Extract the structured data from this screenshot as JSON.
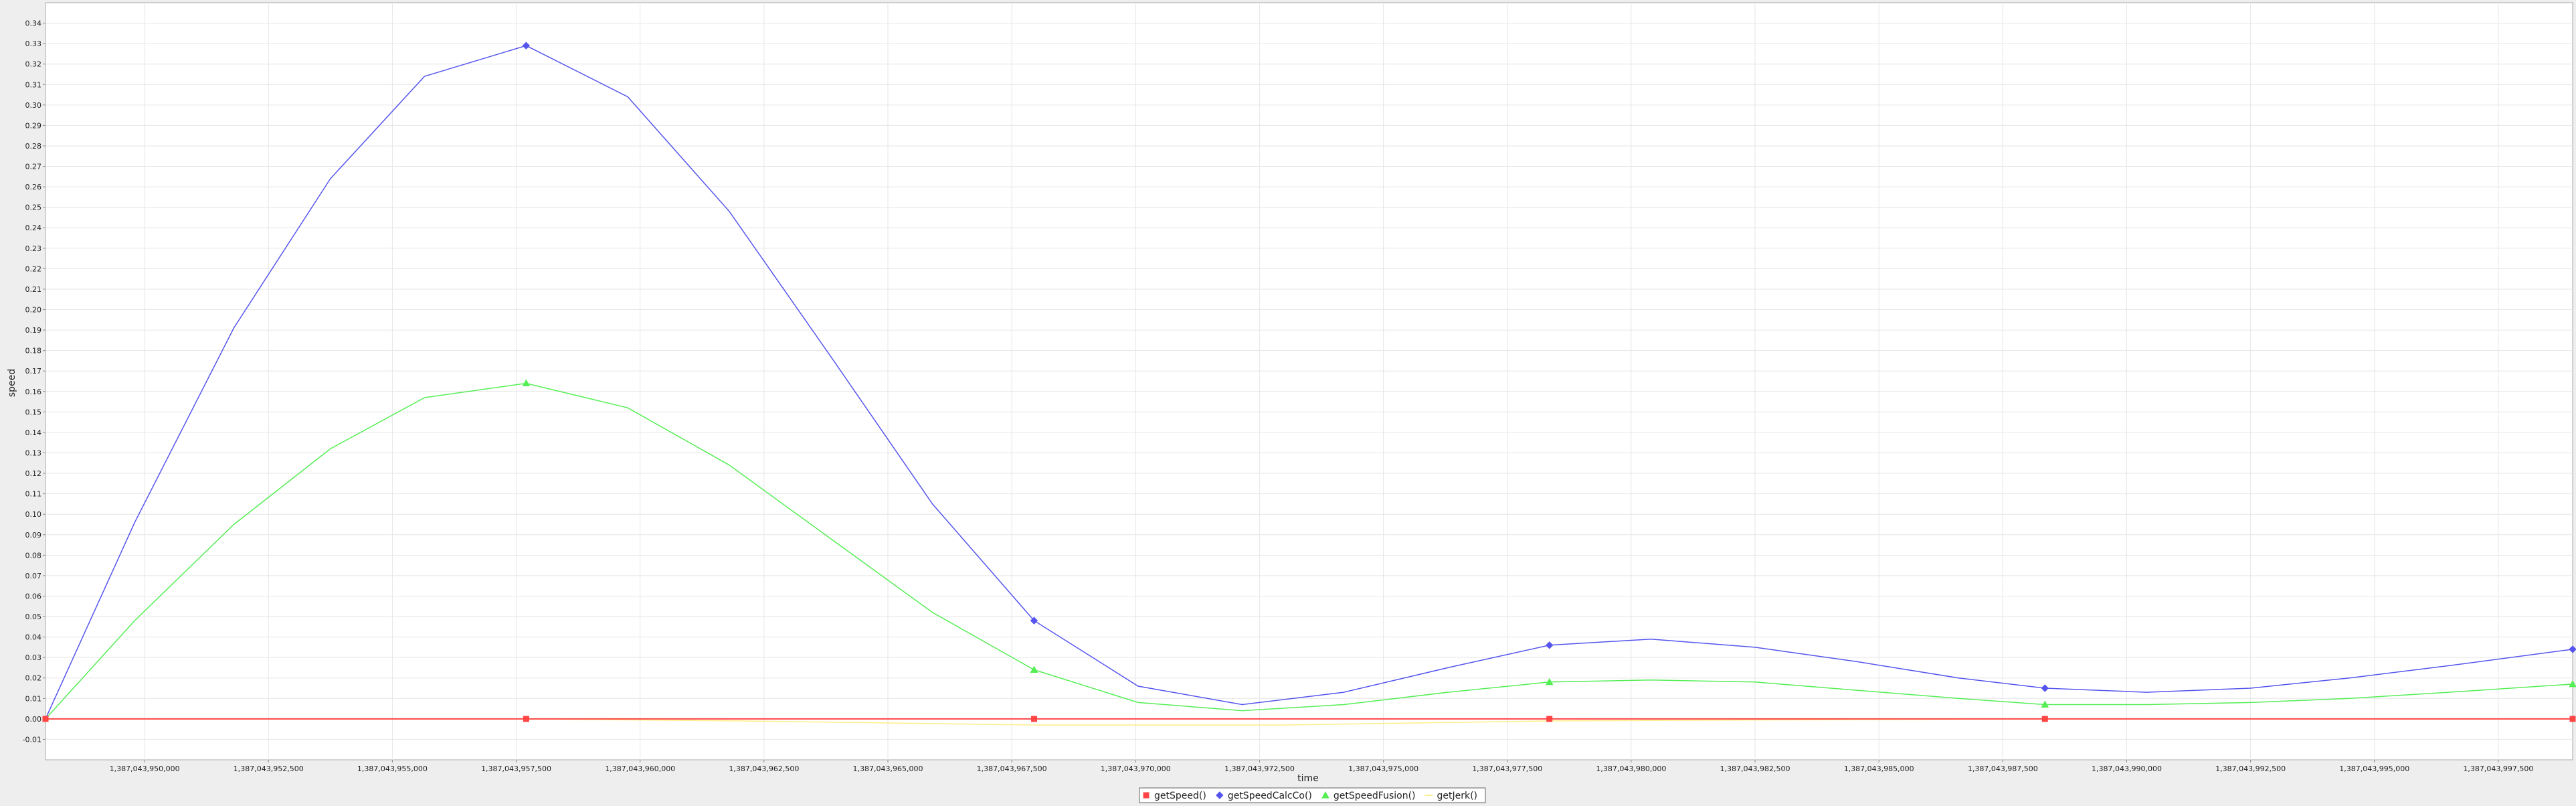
{
  "chart_data": {
    "type": "line",
    "title": "",
    "xlabel": "time",
    "ylabel": "speed",
    "xlim": [
      1387043948000,
      1387043999000
    ],
    "ylim": [
      -0.02,
      0.35
    ],
    "grid": true,
    "legend_position": "bottom-center",
    "x_ticks": [
      1387043950000,
      1387043952500,
      1387043955000,
      1387043957500,
      1387043960000,
      1387043962500,
      1387043965000,
      1387043967500,
      1387043970000,
      1387043972500,
      1387043975000,
      1387043977500,
      1387043980000,
      1387043982500,
      1387043985000,
      1387043987500,
      1387043990000,
      1387043992500,
      1387043995000,
      1387043997500
    ],
    "x_tick_labels": [
      "1,387,043,950,000",
      "1,387,043,952,500",
      "1,387,043,955,000",
      "1,387,043,957,500",
      "1,387,043,960,000",
      "1,387,043,962,500",
      "1,387,043,965,000",
      "1,387,043,967,500",
      "1,387,043,970,000",
      "1,387,043,972,500",
      "1,387,043,975,000",
      "1,387,043,977,500",
      "1,387,043,980,000",
      "1,387,043,982,500",
      "1,387,043,985,000",
      "1,387,043,987,500",
      "1,387,043,990,000",
      "1,387,043,992,500",
      "1,387,043,995,000",
      "1,387,043,997,500"
    ],
    "y_ticks": [
      -0.01,
      0.0,
      0.01,
      0.02,
      0.03,
      0.04,
      0.05,
      0.06,
      0.07,
      0.08,
      0.09,
      0.1,
      0.11,
      0.12,
      0.13,
      0.14,
      0.15,
      0.16,
      0.17,
      0.18,
      0.19,
      0.2,
      0.21,
      0.22,
      0.23,
      0.24,
      0.25,
      0.26,
      0.27,
      0.28,
      0.29,
      0.3,
      0.31,
      0.32,
      0.33,
      0.34
    ],
    "y_tick_labels": [
      "-0.01",
      "0.00",
      "0.01",
      "0.02",
      "0.03",
      "0.04",
      "0.05",
      "0.06",
      "0.07",
      "0.08",
      "0.09",
      "0.10",
      "0.11",
      "0.12",
      "0.13",
      "0.14",
      "0.15",
      "0.16",
      "0.17",
      "0.18",
      "0.19",
      "0.20",
      "0.21",
      "0.22",
      "0.23",
      "0.24",
      "0.25",
      "0.26",
      "0.27",
      "0.28",
      "0.29",
      "0.30",
      "0.31",
      "0.32",
      "0.33",
      "0.34"
    ],
    "series": [
      {
        "name": "getSpeed()",
        "color": "#ff4444",
        "marker": "square",
        "x": [
          1387043948000,
          1387043957700,
          1387043967950,
          1387043978350,
          1387043988350,
          1387043999000
        ],
        "y": [
          0.0,
          0.0,
          0.0,
          0.0,
          0.0,
          0.0
        ],
        "marked": [
          true,
          true,
          true,
          true,
          true,
          true
        ]
      },
      {
        "name": "getSpeedCalcCo()",
        "color": "#5555ee",
        "marker": "diamond",
        "x": [
          1387043948000,
          1387043949800,
          1387043951800,
          1387043953750,
          1387043955650,
          1387043957700,
          1387043959750,
          1387043961800,
          1387043963850,
          1387043965900,
          1387043967950,
          1387043970050,
          1387043972150,
          1387043974200,
          1387043976300,
          1387043978350,
          1387043980400,
          1387043982500,
          1387043984550,
          1387043986600,
          1387043988350,
          1387043990400,
          1387043992500,
          1387043994500,
          1387043996500,
          1387043999000
        ],
        "y": [
          0.0,
          0.096,
          0.191,
          0.264,
          0.314,
          0.329,
          0.304,
          0.248,
          0.177,
          0.105,
          0.048,
          0.016,
          0.007,
          0.013,
          0.025,
          0.036,
          0.039,
          0.035,
          0.028,
          0.02,
          0.015,
          0.013,
          0.015,
          0.02,
          0.026,
          0.034
        ],
        "marked": [
          false,
          false,
          false,
          false,
          false,
          true,
          false,
          false,
          false,
          false,
          true,
          false,
          false,
          false,
          false,
          true,
          false,
          false,
          false,
          false,
          true,
          false,
          false,
          false,
          false,
          true
        ]
      },
      {
        "name": "getSpeedFusion()",
        "color": "#55ee55",
        "marker": "triangle",
        "x": [
          1387043948000,
          1387043949800,
          1387043951800,
          1387043953750,
          1387043955650,
          1387043957700,
          1387043959750,
          1387043961800,
          1387043963850,
          1387043965900,
          1387043967950,
          1387043970050,
          1387043972150,
          1387043974200,
          1387043976300,
          1387043978350,
          1387043980400,
          1387043982500,
          1387043984550,
          1387043986600,
          1387043988350,
          1387043990400,
          1387043992500,
          1387043994500,
          1387043996500,
          1387043999000
        ],
        "y": [
          0.0,
          0.048,
          0.095,
          0.132,
          0.157,
          0.164,
          0.152,
          0.124,
          0.088,
          0.052,
          0.024,
          0.008,
          0.004,
          0.007,
          0.013,
          0.018,
          0.019,
          0.018,
          0.014,
          0.01,
          0.007,
          0.007,
          0.008,
          0.01,
          0.013,
          0.017
        ],
        "marked": [
          false,
          false,
          false,
          false,
          false,
          true,
          false,
          false,
          false,
          false,
          true,
          false,
          false,
          false,
          false,
          true,
          false,
          false,
          false,
          false,
          true,
          false,
          false,
          false,
          false,
          true
        ]
      },
      {
        "name": "getJerk()",
        "color": "#ffee88",
        "marker": "none",
        "x": [
          1387043948000,
          1387043952500,
          1387043957700,
          1387043962000,
          1387043967950,
          1387043973000,
          1387043978350,
          1387043983000,
          1387043988350,
          1387043993500,
          1387043999000
        ],
        "y": [
          0.0,
          0.0,
          0.0,
          -0.001,
          -0.003,
          -0.003,
          -0.001,
          -0.0005,
          0.0,
          0.0,
          0.0
        ],
        "marked": [
          false,
          false,
          false,
          false,
          false,
          false,
          false,
          false,
          false,
          false,
          false
        ]
      }
    ]
  }
}
